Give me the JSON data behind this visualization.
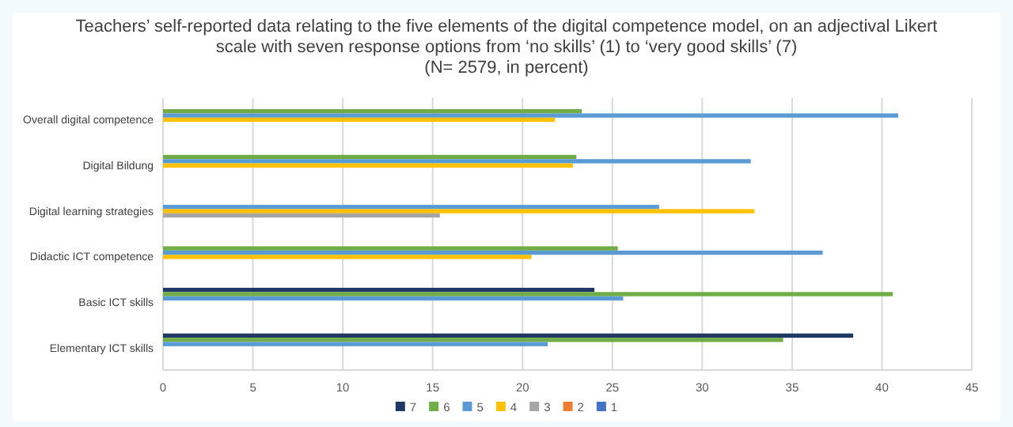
{
  "chart_data": {
    "type": "bar",
    "orientation": "horizontal",
    "title": "Teachers’ self-reported data relating to the five elements of the digital competence model, on an adjectival Likert scale with seven response options from ‘no skills’ (1) to ‘very good skills’ (7)",
    "subtitle": "(N= 2579, in percent)",
    "categories": [
      "Overall digital competence",
      "Digital Bildung",
      "Digital learning strategies",
      "Didactic ICT competence",
      "Basic ICT skills",
      "Elementary ICT skills"
    ],
    "series": [
      {
        "name": "7",
        "color": "#1f3864",
        "values": [
          null,
          null,
          null,
          null,
          24.0,
          38.4
        ]
      },
      {
        "name": "6",
        "color": "#70ad47",
        "values": [
          23.3,
          23.0,
          null,
          25.3,
          40.6,
          34.5
        ]
      },
      {
        "name": "5",
        "color": "#5b9bd5",
        "values": [
          40.9,
          32.7,
          27.6,
          36.7,
          25.6,
          21.4
        ]
      },
      {
        "name": "4",
        "color": "#ffc000",
        "values": [
          21.8,
          22.8,
          32.9,
          20.5,
          null,
          null
        ]
      },
      {
        "name": "3",
        "color": "#a5a5a5",
        "values": [
          null,
          null,
          15.4,
          null,
          null,
          null
        ]
      },
      {
        "name": "2",
        "color": "#ed7d31",
        "values": [
          null,
          null,
          null,
          null,
          null,
          null
        ]
      },
      {
        "name": "1",
        "color": "#4472c4",
        "values": [
          null,
          null,
          null,
          null,
          null,
          null
        ]
      }
    ],
    "xlim": [
      0,
      45
    ],
    "xticks": [
      0,
      5,
      10,
      15,
      20,
      25,
      30,
      35,
      40,
      45
    ],
    "grid": "x",
    "legend": "bottom"
  }
}
